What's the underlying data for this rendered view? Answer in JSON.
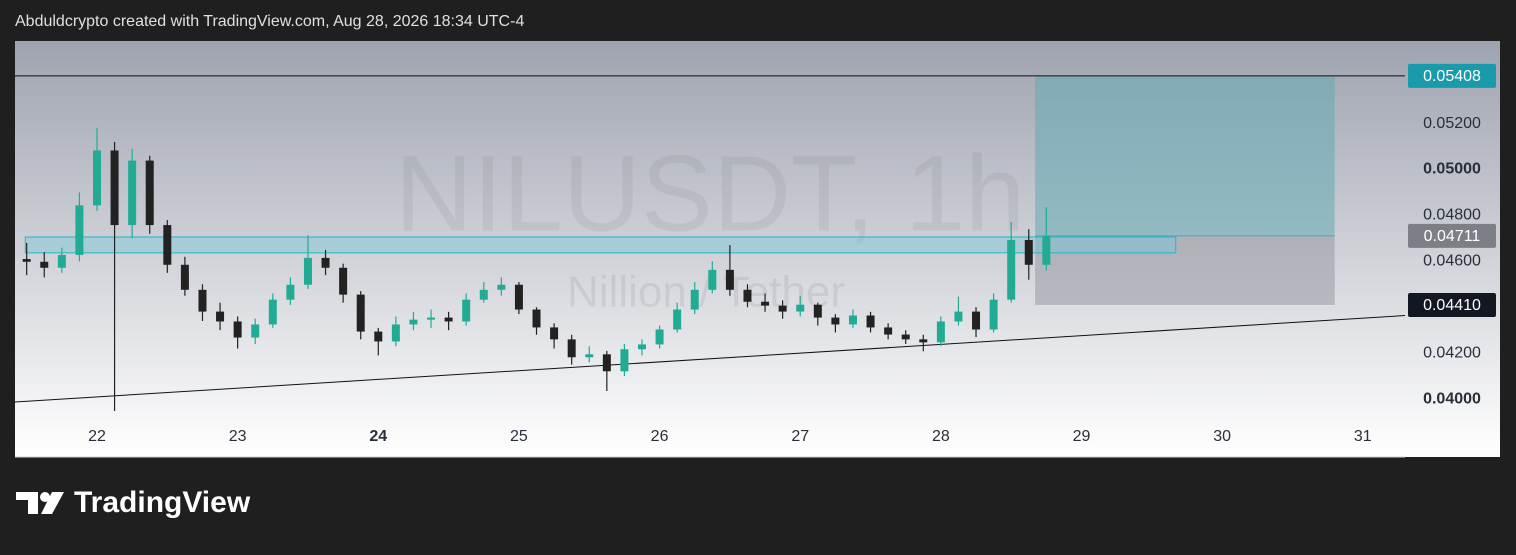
{
  "header": {
    "text": "Abduldcrypto created with TradingView.com, Aug 28, 2026 18:34 UTC-4"
  },
  "footer": {
    "brand": "TradingView"
  },
  "chart_data": {
    "type": "candlestick",
    "watermark": "NILUSDT, 1h",
    "subtitle": "Nillion / Tether",
    "up_color": "#22ab94",
    "down_color": "#222222",
    "xlim": [
      21.417,
      31.3
    ],
    "xticks": [
      22,
      23,
      {
        "value": 24,
        "label": "24",
        "bold": true
      },
      25,
      26,
      27,
      28,
      29,
      30,
      31
    ],
    "ylim": [
      0.039,
      0.0556
    ],
    "yticks": [
      {
        "value": 0.052,
        "label": "0.05200"
      },
      {
        "value": 0.05,
        "label": "0.05000",
        "bold": true
      },
      {
        "value": 0.048,
        "label": "0.04800"
      },
      {
        "value": 0.046,
        "label": "0.04600"
      },
      {
        "value": 0.042,
        "label": "0.04200"
      },
      {
        "value": 0.04,
        "label": "0.04000",
        "bold": true
      }
    ],
    "x": [
      21.5,
      21.625,
      21.75,
      21.875,
      22.0,
      22.125,
      22.25,
      22.375,
      22.5,
      22.625,
      22.75,
      22.875,
      23.0,
      23.125,
      23.25,
      23.375,
      23.5,
      23.625,
      23.75,
      23.875,
      24.0,
      24.125,
      24.25,
      24.375,
      24.5,
      24.625,
      24.75,
      24.875,
      25.0,
      25.125,
      25.25,
      25.375,
      25.5,
      25.625,
      25.75,
      25.875,
      26.0,
      26.125,
      26.25,
      26.375,
      26.5,
      26.625,
      26.75,
      26.875,
      27.0,
      27.125,
      27.25,
      27.375,
      27.5,
      27.625,
      27.75,
      27.875,
      28.0,
      28.125,
      28.25,
      28.375,
      28.5,
      28.625,
      28.75
    ],
    "open": [
      0.0461,
      0.04598,
      0.04572,
      0.04628,
      0.04844,
      0.05083,
      0.04758,
      0.05039,
      0.04758,
      0.04585,
      0.04476,
      0.04381,
      0.04338,
      0.04268,
      0.04325,
      0.04433,
      0.04498,
      0.04615,
      0.04572,
      0.04455,
      0.04294,
      0.04251,
      0.04325,
      0.04346,
      0.04355,
      0.04338,
      0.04433,
      0.04476,
      0.04498,
      0.0439,
      0.04312,
      0.0426,
      0.04182,
      0.04195,
      0.04121,
      0.04217,
      0.04238,
      0.04303,
      0.0439,
      0.04476,
      0.04563,
      0.04476,
      0.04424,
      0.04407,
      0.04381,
      0.04411,
      0.04355,
      0.04325,
      0.04364,
      0.04312,
      0.04281,
      0.0426,
      0.04247,
      0.04338,
      0.04381,
      0.04303,
      0.04433,
      0.04693,
      0.04585
    ],
    "high": [
      0.0468,
      0.0464,
      0.0466,
      0.049,
      0.05182,
      0.0512,
      0.0509,
      0.0506,
      0.0478,
      0.0462,
      0.045,
      0.0442,
      0.0436,
      0.0435,
      0.0446,
      0.0453,
      0.04714,
      0.0465,
      0.0459,
      0.0447,
      0.0431,
      0.0436,
      0.0438,
      0.0439,
      0.0438,
      0.0446,
      0.0451,
      0.0453,
      0.0451,
      0.044,
      0.0433,
      0.0428,
      0.0423,
      0.0421,
      0.0424,
      0.0426,
      0.0432,
      0.0442,
      0.0451,
      0.046,
      0.04671,
      0.045,
      0.0446,
      0.0443,
      0.0445,
      0.0442,
      0.0437,
      0.0439,
      0.0438,
      0.0433,
      0.043,
      0.0428,
      0.0436,
      0.04446,
      0.044,
      0.0446,
      0.04771,
      0.0474,
      0.04836
    ],
    "low": [
      0.0454,
      0.0453,
      0.0455,
      0.046,
      0.0482,
      0.03948,
      0.047,
      0.0472,
      0.0455,
      0.0445,
      0.0434,
      0.043,
      0.0422,
      0.0424,
      0.0431,
      0.0441,
      0.0448,
      0.0454,
      0.0442,
      0.0426,
      0.0419,
      0.0423,
      0.043,
      0.0431,
      0.043,
      0.0432,
      0.0442,
      0.0445,
      0.0437,
      0.0428,
      0.0422,
      0.0415,
      0.0416,
      0.04035,
      0.041,
      0.0419,
      0.0422,
      0.0429,
      0.0437,
      0.0446,
      0.0445,
      0.044,
      0.0438,
      0.0435,
      0.0436,
      0.0432,
      0.0429,
      0.0431,
      0.0429,
      0.0426,
      0.0424,
      0.04208,
      0.0423,
      0.0432,
      0.0427,
      0.0429,
      0.0442,
      0.0452,
      0.0456
    ],
    "close": [
      0.04598,
      0.04572,
      0.04628,
      0.04844,
      0.05083,
      0.04758,
      0.05039,
      0.04758,
      0.04585,
      0.04476,
      0.04381,
      0.04338,
      0.04268,
      0.04325,
      0.04433,
      0.04498,
      0.04615,
      0.04572,
      0.04455,
      0.04294,
      0.04251,
      0.04325,
      0.04346,
      0.04355,
      0.04338,
      0.04433,
      0.04476,
      0.04498,
      0.0439,
      0.04312,
      0.0426,
      0.04182,
      0.04195,
      0.04121,
      0.04217,
      0.04238,
      0.04303,
      0.0439,
      0.04476,
      0.04563,
      0.04476,
      0.04424,
      0.04407,
      0.04381,
      0.04411,
      0.04355,
      0.04325,
      0.04364,
      0.04312,
      0.04281,
      0.0426,
      0.04247,
      0.04338,
      0.04381,
      0.04303,
      0.04433,
      0.04693,
      0.04585,
      0.0471
    ],
    "hline": 0.05408,
    "trendline": {
      "x": [
        21.417,
        31.3
      ],
      "y": [
        0.03987,
        0.04364
      ]
    },
    "zone": {
      "x": [
        21.49,
        29.67
      ],
      "y": [
        0.04637,
        0.04706
      ]
    },
    "position": {
      "x": [
        28.67,
        30.8
      ],
      "target": 0.05408,
      "entry": 0.04711,
      "stop": 0.0441
    },
    "price_tags": [
      {
        "value": 0.05408,
        "label": "0.05408",
        "color": "#1a9bab"
      },
      {
        "value": 0.04711,
        "label": "0.04711",
        "color": "#7d7f86"
      },
      {
        "value": 0.0441,
        "label": "0.04410",
        "color": "#131722"
      }
    ]
  }
}
